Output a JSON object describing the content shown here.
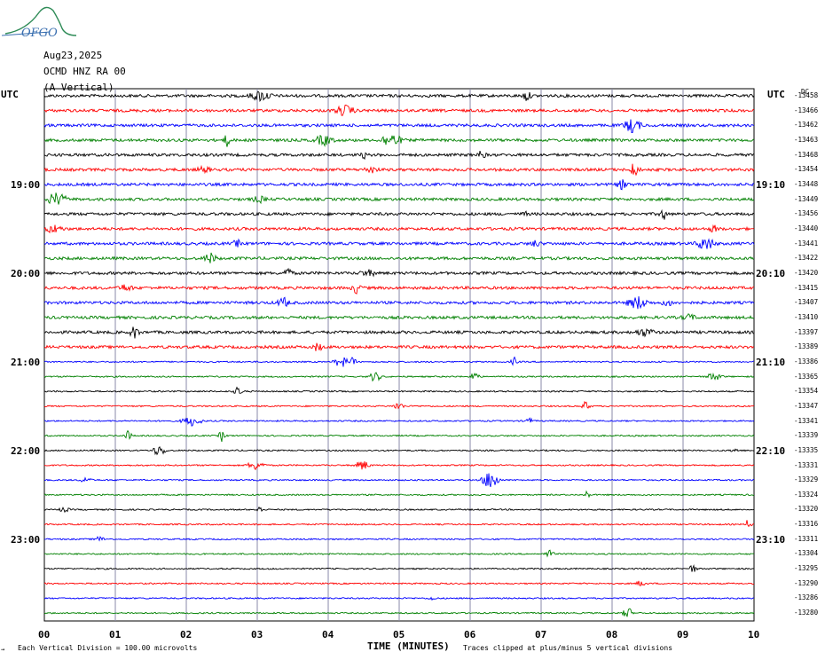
{
  "header": {
    "logo_text": "OFGO",
    "date": "Aug23,2025",
    "station": "OCMD HNZ RA 00",
    "component": "(A Vertical)"
  },
  "chart_data": {
    "type": "line",
    "title": "",
    "xlabel": "TIME (MINUTES)",
    "ylabel": "",
    "xlim": [
      0,
      10
    ],
    "x_ticks": [
      "00",
      "01",
      "02",
      "03",
      "04",
      "05",
      "06",
      "07",
      "08",
      "09",
      "10"
    ],
    "grid": true,
    "left_axis_label": "UTC",
    "right_axis_label": "UTC",
    "hour_labels_left": [
      "19:00",
      "20:00",
      "21:00",
      "22:00",
      "23:00"
    ],
    "hour_labels_right": [
      "19:10",
      "20:10",
      "21:10",
      "22:10",
      "23:10"
    ],
    "trace_color_cycle": [
      "#000000",
      "#ff0000",
      "#0000ff",
      "#008000"
    ],
    "first_right_marker": "DC",
    "trace_offsets": [
      "-13458",
      "-13466",
      "-13462",
      "-13463",
      "-13468",
      "-13454",
      "-13448",
      "-13449",
      "-13456",
      "-13440",
      "-13441",
      "-13422",
      "-13420",
      "-13415",
      "-13407",
      "-13410",
      "-13397",
      "-13389",
      "-13386",
      "-13365",
      "-13354",
      "-13347",
      "-13341",
      "-13339",
      "-13335",
      "-13331",
      "-13329",
      "-13324",
      "-13320",
      "-13316",
      "-13311",
      "-13304",
      "-13295",
      "-13290",
      "-13286",
      "-13280"
    ]
  },
  "footer": {
    "division_note": "Each Vertical Division =  100.00 microvolts",
    "clip_note": "Traces clipped at plus/minus 5 vertical divisions"
  }
}
